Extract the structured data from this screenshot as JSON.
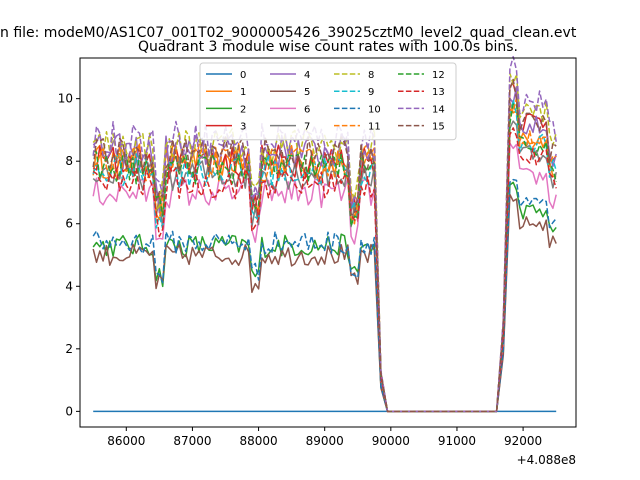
{
  "figure": {
    "suptitle": "n file: modeM0/AS1C07_001T02_9000005426_39025cztM0_level2_quad_clean.evt",
    "title": "Quadrant 3 module wise count rates with 100.0s bins.",
    "offset_label": "+4.088e8"
  },
  "chart_data": {
    "type": "line",
    "title": "Quadrant 3 module wise count rates with 100.0s bins.",
    "xlabel": "",
    "ylabel": "",
    "x_offset": 408800000,
    "xlim": [
      85300,
      92800
    ],
    "ylim": [
      -0.5,
      11.3
    ],
    "xticks": [
      86000,
      87000,
      88000,
      89000,
      90000,
      91000,
      92000
    ],
    "yticks": [
      0,
      2,
      4,
      6,
      8,
      10
    ],
    "grid": false,
    "legend": {
      "placement": "upper center",
      "columns": 4
    },
    "segments": {
      "first": {
        "x_start": 85500,
        "x_end": 89750,
        "step": 50
      },
      "gap": {
        "drop_x": [
          89850,
          89950
        ],
        "zero_x": [
          91600
        ],
        "rise_x": [
          91700
        ]
      },
      "second": {
        "x_start": 91800,
        "x_end": 92500,
        "step": 50
      }
    },
    "series": [
      {
        "name": "0",
        "color": "#1f77b4",
        "dash": "solid",
        "level": 0.0,
        "level2": 0.0
      },
      {
        "name": "1",
        "color": "#ff7f0e",
        "dash": "solid",
        "level": 8.0,
        "level2": 8.7
      },
      {
        "name": "2",
        "color": "#2ca02c",
        "dash": "solid",
        "level": 5.3,
        "level2": 6.4
      },
      {
        "name": "3",
        "color": "#d62728",
        "dash": "solid",
        "level": 8.0,
        "level2": 9.3
      },
      {
        "name": "4",
        "color": "#9467bd",
        "dash": "solid",
        "level": 8.3,
        "level2": 9.1
      },
      {
        "name": "5",
        "color": "#8c564b",
        "dash": "solid",
        "level": 5.0,
        "level2": 6.0
      },
      {
        "name": "6",
        "color": "#e377c2",
        "dash": "solid",
        "level": 7.0,
        "level2": 7.5
      },
      {
        "name": "7",
        "color": "#7f7f7f",
        "dash": "solid",
        "level": 7.6,
        "level2": 8.3
      },
      {
        "name": "8",
        "color": "#bcbd22",
        "dash": "dashed",
        "level": 8.5,
        "level2": 9.6
      },
      {
        "name": "9",
        "color": "#17becf",
        "dash": "dashed",
        "level": 7.7,
        "level2": 8.6
      },
      {
        "name": "10",
        "color": "#1f77b4",
        "dash": "dashed",
        "level": 5.4,
        "level2": 6.6
      },
      {
        "name": "11",
        "color": "#ff7f0e",
        "dash": "dashed",
        "level": 7.9,
        "level2": 8.8
      },
      {
        "name": "12",
        "color": "#2ca02c",
        "dash": "dashed",
        "level": 7.8,
        "level2": 8.5
      },
      {
        "name": "13",
        "color": "#d62728",
        "dash": "dashed",
        "level": 7.3,
        "level2": 8.1
      },
      {
        "name": "14",
        "color": "#9467bd",
        "dash": "dashed",
        "level": 8.7,
        "level2": 9.9
      },
      {
        "name": "15",
        "color": "#8c564b",
        "dash": "dashed",
        "level": 8.2,
        "level2": 9.2
      }
    ]
  }
}
